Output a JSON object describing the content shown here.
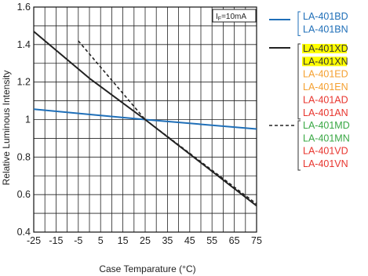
{
  "chart_data": {
    "type": "line",
    "xlabel": "Case Temparature (°C)",
    "ylabel": "Relative Luminous Intensity",
    "xlim": [
      -25,
      75
    ],
    "ylim": [
      0.4,
      1.6
    ],
    "x_ticks": [
      -25,
      -15,
      -5,
      5,
      15,
      25,
      35,
      45,
      55,
      65,
      75
    ],
    "x_tick_labels": [
      "-25",
      "-15",
      "-5",
      "5",
      "15",
      "25",
      "35",
      "45",
      "55",
      "65",
      "75"
    ],
    "y_ticks": [
      0.4,
      0.6,
      0.8,
      1.0,
      1.2,
      1.4,
      1.6
    ],
    "y_tick_labels": [
      "0.4",
      "0.6",
      "0.8",
      "1",
      "1.2",
      "1.4",
      "1.6"
    ],
    "grid": true,
    "annotation": {
      "main": "I",
      "sub": "F",
      "rest": "=10mA"
    },
    "series": [
      {
        "x": [
          -25,
          25,
          75
        ],
        "y": [
          1.055,
          1.0,
          0.95
        ],
        "color": "#1f6fb8",
        "dash": "solid",
        "legend": [
          {
            "text": "LA-401BD",
            "color": "#1f6fb8"
          },
          {
            "text": "LA-401BN",
            "color": "#1f6fb8"
          }
        ]
      },
      {
        "x": [
          -25,
          0,
          25,
          50,
          75
        ],
        "y": [
          1.47,
          1.22,
          1.0,
          0.77,
          0.54
        ],
        "color": "#222222",
        "dash": "solid",
        "legend": [
          {
            "text": "LA-401XD",
            "color": "#333333",
            "highlight": "#ffff00"
          },
          {
            "text": "LA-401XN",
            "color": "#333333",
            "highlight": "#ffff00"
          },
          {
            "text": "LA-401ED",
            "color": "#f5a030"
          },
          {
            "text": "LA-401EN",
            "color": "#f5a030"
          },
          {
            "text": "LA-401AD",
            "color": "#e8352e"
          },
          {
            "text": "LA-401AN",
            "color": "#e8352e"
          }
        ]
      },
      {
        "x": [
          -5,
          25,
          75
        ],
        "y": [
          1.42,
          1.0,
          0.55
        ],
        "color": "#222222",
        "dash": "dashed",
        "legend": [
          {
            "text": "LA-401MD",
            "color": "#3aa845"
          },
          {
            "text": "LA-401MN",
            "color": "#3aa845"
          },
          {
            "text": "LA-401VD",
            "color": "#e8352e"
          },
          {
            "text": "LA-401VN",
            "color": "#e8352e"
          }
        ]
      }
    ]
  }
}
